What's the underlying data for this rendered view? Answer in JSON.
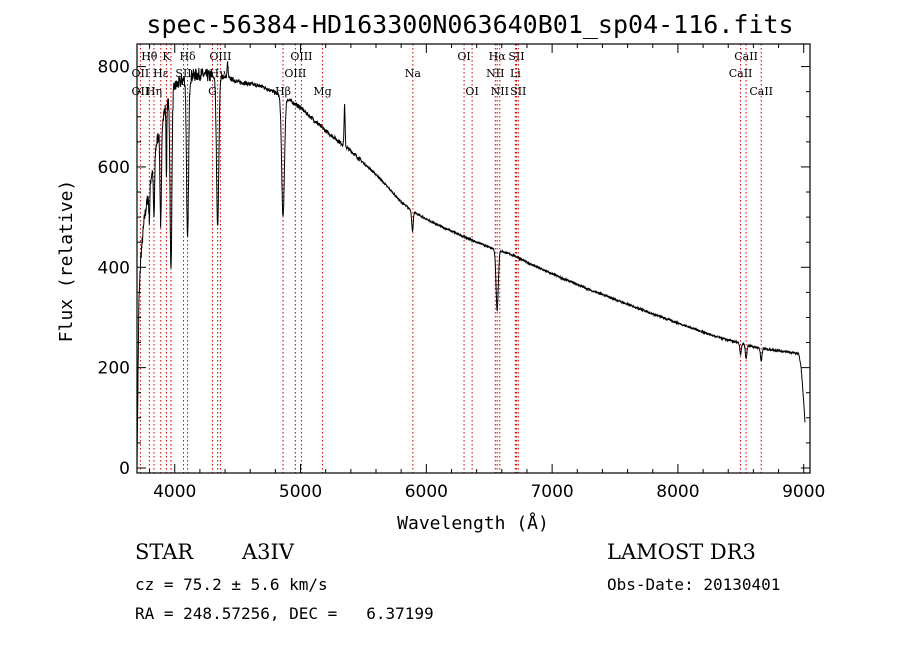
{
  "chart_data": {
    "type": "line",
    "title": "spec-56384-HD163300N063640B01_sp04-116.fits",
    "xlabel": "Wavelength (Å)",
    "ylabel": "Flux (relative)",
    "xlim": [
      3700,
      9050
    ],
    "ylim": [
      -10,
      845
    ],
    "xticks": [
      "4000",
      "5000",
      "6000",
      "7000",
      "8000",
      "9000"
    ],
    "xtick_values": [
      4000,
      5000,
      6000,
      7000,
      8000,
      9000
    ],
    "yticks": [
      "0",
      "200",
      "400",
      "600",
      "800"
    ],
    "ytick_values": [
      0,
      200,
      400,
      600,
      800
    ],
    "continuum": [
      [
        3700,
        0
      ],
      [
        3705,
        120
      ],
      [
        3715,
        330
      ],
      [
        3730,
        420
      ],
      [
        3760,
        500
      ],
      [
        3800,
        560
      ],
      [
        3850,
        640
      ],
      [
        3900,
        700
      ],
      [
        4000,
        760
      ],
      [
        4100,
        780
      ],
      [
        4200,
        785
      ],
      [
        4300,
        780
      ],
      [
        4400,
        780
      ],
      [
        4500,
        770
      ],
      [
        4600,
        765
      ],
      [
        4700,
        760
      ],
      [
        4800,
        748
      ],
      [
        4900,
        735
      ],
      [
        5000,
        718
      ],
      [
        5100,
        695
      ],
      [
        5200,
        672
      ],
      [
        5300,
        652
      ],
      [
        5400,
        632
      ],
      [
        5500,
        608
      ],
      [
        5600,
        585
      ],
      [
        5700,
        558
      ],
      [
        5800,
        530
      ],
      [
        5900,
        510
      ],
      [
        6000,
        496
      ],
      [
        6100,
        483
      ],
      [
        6200,
        472
      ],
      [
        6300,
        461
      ],
      [
        6400,
        450
      ],
      [
        6500,
        440
      ],
      [
        6600,
        432
      ],
      [
        6700,
        423
      ],
      [
        6800,
        410
      ],
      [
        6900,
        398
      ],
      [
        7000,
        387
      ],
      [
        7100,
        376
      ],
      [
        7200,
        366
      ],
      [
        7300,
        355
      ],
      [
        7400,
        346
      ],
      [
        7500,
        336
      ],
      [
        7600,
        326
      ],
      [
        7700,
        317
      ],
      [
        7800,
        307
      ],
      [
        7900,
        298
      ],
      [
        8000,
        289
      ],
      [
        8100,
        280
      ],
      [
        8200,
        271
      ],
      [
        8300,
        262
      ],
      [
        8400,
        255
      ],
      [
        8500,
        248
      ],
      [
        8600,
        242
      ],
      [
        8700,
        237
      ],
      [
        8800,
        234
      ],
      [
        8900,
        230
      ],
      [
        8960,
        228
      ],
      [
        8980,
        200
      ],
      [
        9000,
        130
      ],
      [
        9010,
        90
      ]
    ],
    "absorption_lines": [
      {
        "center": 3798,
        "depth": 60,
        "width": 4
      },
      {
        "center": 3835,
        "depth": 120,
        "width": 5
      },
      {
        "center": 3889,
        "depth": 200,
        "width": 6
      },
      {
        "center": 3934,
        "depth": 140,
        "width": 3
      },
      {
        "center": 3970,
        "depth": 350,
        "width": 7
      },
      {
        "center": 4102,
        "depth": 330,
        "width": 8
      },
      {
        "center": 4341,
        "depth": 300,
        "width": 9
      },
      {
        "center": 4861,
        "depth": 240,
        "width": 11
      },
      {
        "center": 5890,
        "depth": 40,
        "width": 6
      },
      {
        "center": 6563,
        "depth": 120,
        "width": 9
      },
      {
        "center": 8498,
        "depth": 22,
        "width": 6
      },
      {
        "center": 8542,
        "depth": 28,
        "width": 6
      },
      {
        "center": 8662,
        "depth": 26,
        "width": 6
      }
    ],
    "emission_spikes": [
      {
        "center": 5350,
        "height": 80,
        "width": 4
      },
      {
        "center": 4420,
        "height": 30,
        "width": 4
      }
    ],
    "line_markers": [
      {
        "label": "Hθ",
        "x": 3798,
        "row": 0
      },
      {
        "label": "OII",
        "x": 3727,
        "row": 1
      },
      {
        "label": "OII",
        "x": 3727,
        "row": 2
      },
      {
        "label": "Hε",
        "x": 3889,
        "row": 1
      },
      {
        "label": "Hη",
        "x": 3835,
        "row": 2
      },
      {
        "label": "K",
        "x": 3934,
        "row": 0
      },
      {
        "label": "SII",
        "x": 4070,
        "row": 1
      },
      {
        "label": "Hδ",
        "x": 4102,
        "row": 0
      },
      {
        "label": "G",
        "x": 4300,
        "row": 2
      },
      {
        "label": "OIII",
        "x": 4363,
        "row": 0
      },
      {
        "label": "Hγ",
        "x": 4341,
        "row": 1
      },
      {
        "label": "Hβ",
        "x": 4861,
        "row": 2
      },
      {
        "label": "OIII",
        "x": 5007,
        "row": 0
      },
      {
        "label": "OIII",
        "x": 4959,
        "row": 1
      },
      {
        "label": "Mg",
        "x": 5175,
        "row": 2
      },
      {
        "label": "Na",
        "x": 5893,
        "row": 1
      },
      {
        "label": "OI",
        "x": 6300,
        "row": 0
      },
      {
        "label": "OI",
        "x": 6364,
        "row": 2
      },
      {
        "label": "Hα",
        "x": 6563,
        "row": 0
      },
      {
        "label": "NII",
        "x": 6548,
        "row": 1
      },
      {
        "label": "NII",
        "x": 6584,
        "row": 2
      },
      {
        "label": "SII",
        "x": 6717,
        "row": 0
      },
      {
        "label": "Li",
        "x": 6708,
        "row": 1
      },
      {
        "label": "SII",
        "x": 6731,
        "row": 2
      },
      {
        "label": "CaII",
        "x": 8542,
        "row": 0
      },
      {
        "label": "CaII",
        "x": 8498,
        "row": 1
      },
      {
        "label": "CaII",
        "x": 8662,
        "row": 2
      }
    ],
    "marker_wavelengths": [
      3727,
      3798,
      3835,
      3889,
      3934,
      3970,
      4070,
      4102,
      4300,
      4341,
      4363,
      4861,
      4959,
      5007,
      5175,
      5893,
      6300,
      6364,
      6548,
      6563,
      6584,
      6708,
      6717,
      6731,
      8498,
      8542,
      8662
    ],
    "colors": {
      "spectrum": "#000000",
      "markers": "#cc0000",
      "axes": "#000000"
    }
  },
  "info": {
    "object_type": "STAR",
    "subclass": "A3IV",
    "survey": "LAMOST DR3",
    "cz": "cz = 75.2 ± 5.6 km/s",
    "obs_date": "Obs-Date: 20130401",
    "radec": "RA = 248.57256, DEC =   6.37199"
  }
}
